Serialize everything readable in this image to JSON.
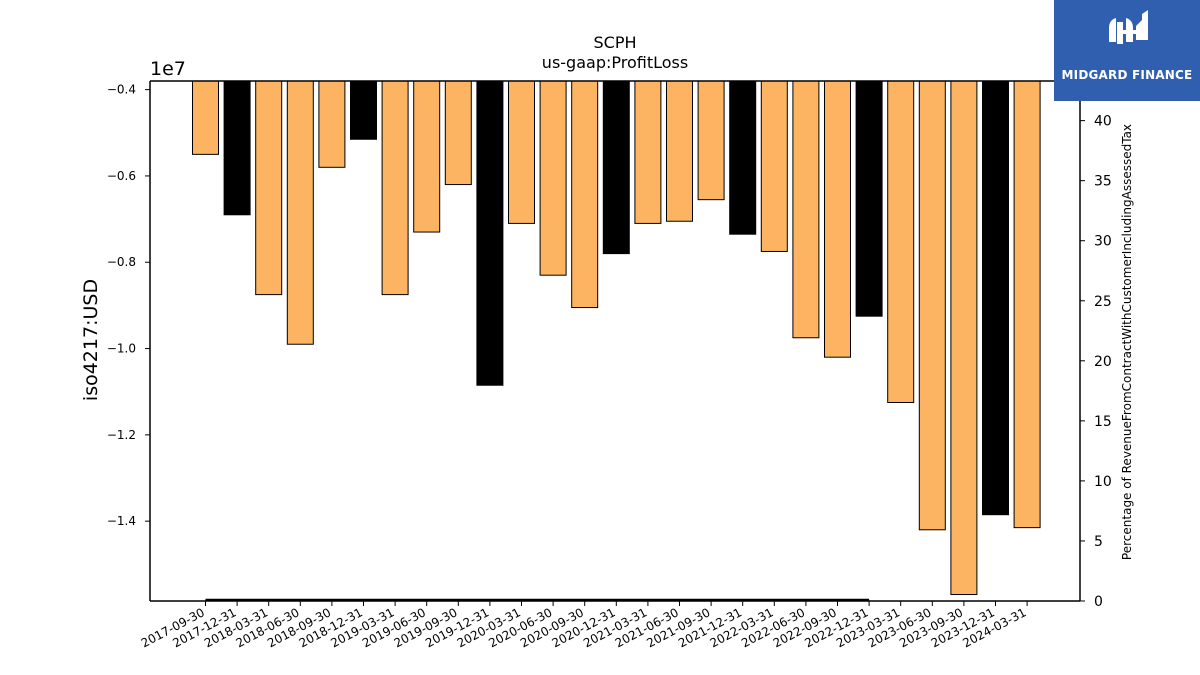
{
  "chart_data": {
    "type": "bar",
    "title": "SCPH",
    "subtitle": "us-gaap:ProfitLoss",
    "ylabel": "iso4217:USD",
    "y_offset_label": "1e7",
    "y2label": "Percentage of RevenueFromContractWithCustomerIncludingAssessedTax",
    "ylim": [
      -1.585,
      -0.38
    ],
    "y_scale_multiplier": 10000000,
    "yticks": [
      -0.4,
      -0.6,
      -0.8,
      -1.0,
      -1.2,
      -1.4
    ],
    "ytick_labels": [
      "−0.4",
      "−0.6",
      "−0.8",
      "−1.0",
      "−1.2",
      "−1.4"
    ],
    "y2lim": [
      0,
      43.3
    ],
    "y2ticks": [
      0,
      5,
      10,
      15,
      20,
      25,
      30,
      35,
      40
    ],
    "y2tick_labels": [
      "0",
      "5",
      "10",
      "15",
      "20",
      "25",
      "30",
      "35",
      "40"
    ],
    "bar_base": -0.38,
    "grid": false,
    "categories": [
      "2017-09-30",
      "2017-12-31",
      "2018-03-31",
      "2018-06-30",
      "2018-09-30",
      "2018-12-31",
      "2019-03-31",
      "2019-06-30",
      "2019-09-30",
      "2019-12-31",
      "2020-03-31",
      "2020-06-30",
      "2020-09-30",
      "2020-12-31",
      "2021-03-31",
      "2021-06-30",
      "2021-09-30",
      "2021-12-31",
      "2022-03-31",
      "2022-06-30",
      "2022-09-30",
      "2022-12-31",
      "2023-03-31",
      "2023-06-30",
      "2023-09-30",
      "2023-12-31",
      "2024-03-31"
    ],
    "values": [
      -0.55,
      -0.69,
      -0.875,
      -0.99,
      -0.58,
      -0.515,
      -0.875,
      -0.73,
      -0.62,
      -1.085,
      -0.71,
      -0.83,
      -0.905,
      -0.78,
      -0.71,
      -0.705,
      -0.655,
      -0.735,
      -0.775,
      -0.975,
      -1.02,
      -0.925,
      -1.125,
      -1.42,
      -1.57,
      -1.385,
      -1.415
    ],
    "bar_colors": [
      "#fdb462",
      "#000000",
      "#fdb462",
      "#fdb462",
      "#fdb462",
      "#000000",
      "#fdb462",
      "#fdb462",
      "#fdb462",
      "#000000",
      "#fdb462",
      "#fdb462",
      "#fdb462",
      "#000000",
      "#fdb462",
      "#fdb462",
      "#fdb462",
      "#000000",
      "#fdb462",
      "#fdb462",
      "#fdb462",
      "#000000",
      "#fdb462",
      "#fdb462",
      "#fdb462",
      "#000000",
      "#fdb462"
    ],
    "secondary_line": {
      "x_range": [
        "2017-09-30",
        "2022-12-31"
      ],
      "values": [
        0.1,
        0.1
      ],
      "color": "#000000"
    }
  },
  "logo": {
    "name": "MIDGARD FINANCE",
    "background": "#2f5fae"
  }
}
